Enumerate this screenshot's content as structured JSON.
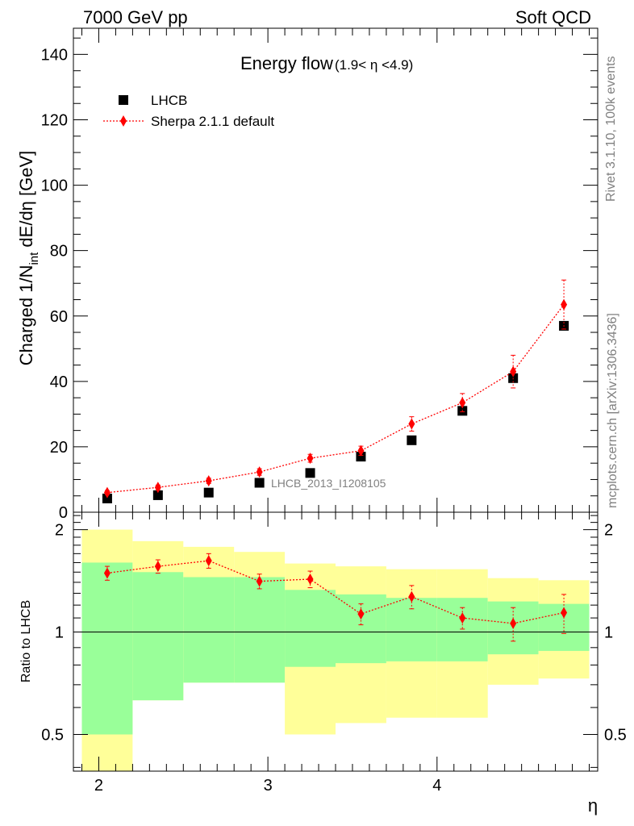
{
  "header": {
    "left": "7000 GeV pp",
    "right": "Soft QCD"
  },
  "plot_title": {
    "main": "Energy flow",
    "sub": "(1.9< η <4.9)"
  },
  "side_labels": {
    "rivet": "Rivet 3.1.10,  100k events",
    "mcplots": "mcplots.cern.ch [arXiv:1306.3436]"
  },
  "analysis_label": "LHCB_2013_I1208105",
  "chart_data": [
    {
      "type": "scatter",
      "panel": "main",
      "ylabel_parts": {
        "a": "Charged 1/N",
        "sub": "int",
        "b": " dE/dη [GeV]"
      },
      "xlabel": "η",
      "xlim": [
        1.85,
        4.95
      ],
      "ylim": [
        0,
        148
      ],
      "yticks": [
        "0",
        "20",
        "40",
        "60",
        "80",
        "100",
        "120",
        "140"
      ],
      "ytick_values": [
        0,
        20,
        40,
        60,
        80,
        100,
        120,
        140
      ],
      "series": [
        {
          "name": "LHCB",
          "marker": "square",
          "color": "#000000",
          "x": [
            2.05,
            2.35,
            2.65,
            2.95,
            3.25,
            3.55,
            3.85,
            4.15,
            4.45,
            4.75
          ],
          "y": [
            4.2,
            5.2,
            6.0,
            9.0,
            12.0,
            17.0,
            22.0,
            31.0,
            41.0,
            57.0
          ]
        },
        {
          "name": "Sherpa 2.1.1 default",
          "marker": "diamond",
          "line": "dotted",
          "color": "#ff0000",
          "x": [
            2.05,
            2.35,
            2.65,
            2.95,
            3.25,
            3.55,
            3.85,
            4.15,
            4.45,
            4.75
          ],
          "y": [
            6.0,
            7.6,
            9.6,
            12.3,
            16.5,
            18.8,
            27.0,
            33.5,
            43.0,
            63.5
          ],
          "err": [
            0.6,
            0.7,
            0.8,
            1.0,
            1.2,
            1.4,
            2.2,
            2.8,
            5.0,
            7.5
          ]
        }
      ],
      "legend": "top-left"
    },
    {
      "type": "scatter",
      "panel": "ratio",
      "ylabel": "Ratio to LHCB",
      "xlabel": "η",
      "xlim": [
        1.85,
        4.95
      ],
      "ylim": [
        0.39,
        2.25
      ],
      "scale": "log",
      "xticks": [
        "2",
        "3",
        "4"
      ],
      "xtick_values": [
        2,
        3,
        4
      ],
      "yticks": [
        "0.5",
        "1",
        "2"
      ],
      "ytick_values": [
        0.5,
        1,
        2
      ],
      "reference_line": 1,
      "bands": {
        "edges": [
          1.9,
          2.2,
          2.5,
          2.8,
          3.1,
          3.4,
          3.7,
          4.0,
          4.3,
          4.6,
          4.9
        ],
        "yellow_low": [
          0.2,
          0.63,
          0.71,
          0.71,
          0.5,
          0.54,
          0.56,
          0.56,
          0.7,
          0.73
        ],
        "yellow_high": [
          2.0,
          1.85,
          1.78,
          1.72,
          1.59,
          1.56,
          1.53,
          1.53,
          1.44,
          1.42
        ],
        "green_low": [
          0.5,
          0.63,
          0.71,
          0.71,
          0.79,
          0.81,
          0.82,
          0.82,
          0.86,
          0.88
        ],
        "green_high": [
          1.6,
          1.5,
          1.45,
          1.45,
          1.33,
          1.29,
          1.26,
          1.26,
          1.23,
          1.21
        ]
      },
      "series": [
        {
          "name": "Sherpa 2.1.1 default",
          "color": "#ff0000",
          "x": [
            2.05,
            2.35,
            2.65,
            2.95,
            3.25,
            3.55,
            3.85,
            4.15,
            4.45,
            4.75
          ],
          "y": [
            1.49,
            1.56,
            1.62,
            1.41,
            1.43,
            1.13,
            1.27,
            1.1,
            1.06,
            1.14
          ],
          "err": [
            0.07,
            0.07,
            0.08,
            0.07,
            0.08,
            0.08,
            0.1,
            0.08,
            0.12,
            0.15
          ]
        }
      ]
    }
  ]
}
